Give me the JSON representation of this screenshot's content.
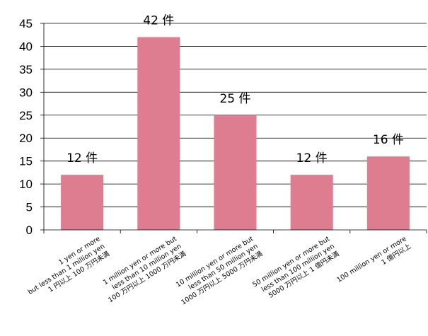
{
  "chart_data": {
    "type": "bar",
    "categories": [
      [
        "1 yen or more",
        "but less than 1 million yen",
        "1 円以上 100 万円未満"
      ],
      [
        "1 million yen or more but",
        "less than 10 million yen",
        "100 万円以上 1000 万円未満"
      ],
      [
        "10 million yen or more but",
        "less than 50 million yen",
        "1000 万円以上 5000 万円未満"
      ],
      [
        "50 million yen or more but",
        "less than 100 million yen",
        "5000 万円以上 1 億円未満"
      ],
      [
        "100 million yen or more",
        "1 億円以上"
      ]
    ],
    "values": [
      12,
      42,
      25,
      12,
      16
    ],
    "data_labels": [
      "12 件",
      "42 件",
      "25 件",
      "12 件",
      "16 件"
    ],
    "ylim": [
      0,
      45
    ],
    "yticks": [
      0,
      5,
      10,
      15,
      20,
      25,
      30,
      35,
      40,
      45
    ],
    "grid": true,
    "bar_color": "#de7d90",
    "grid_color": "#000000"
  }
}
